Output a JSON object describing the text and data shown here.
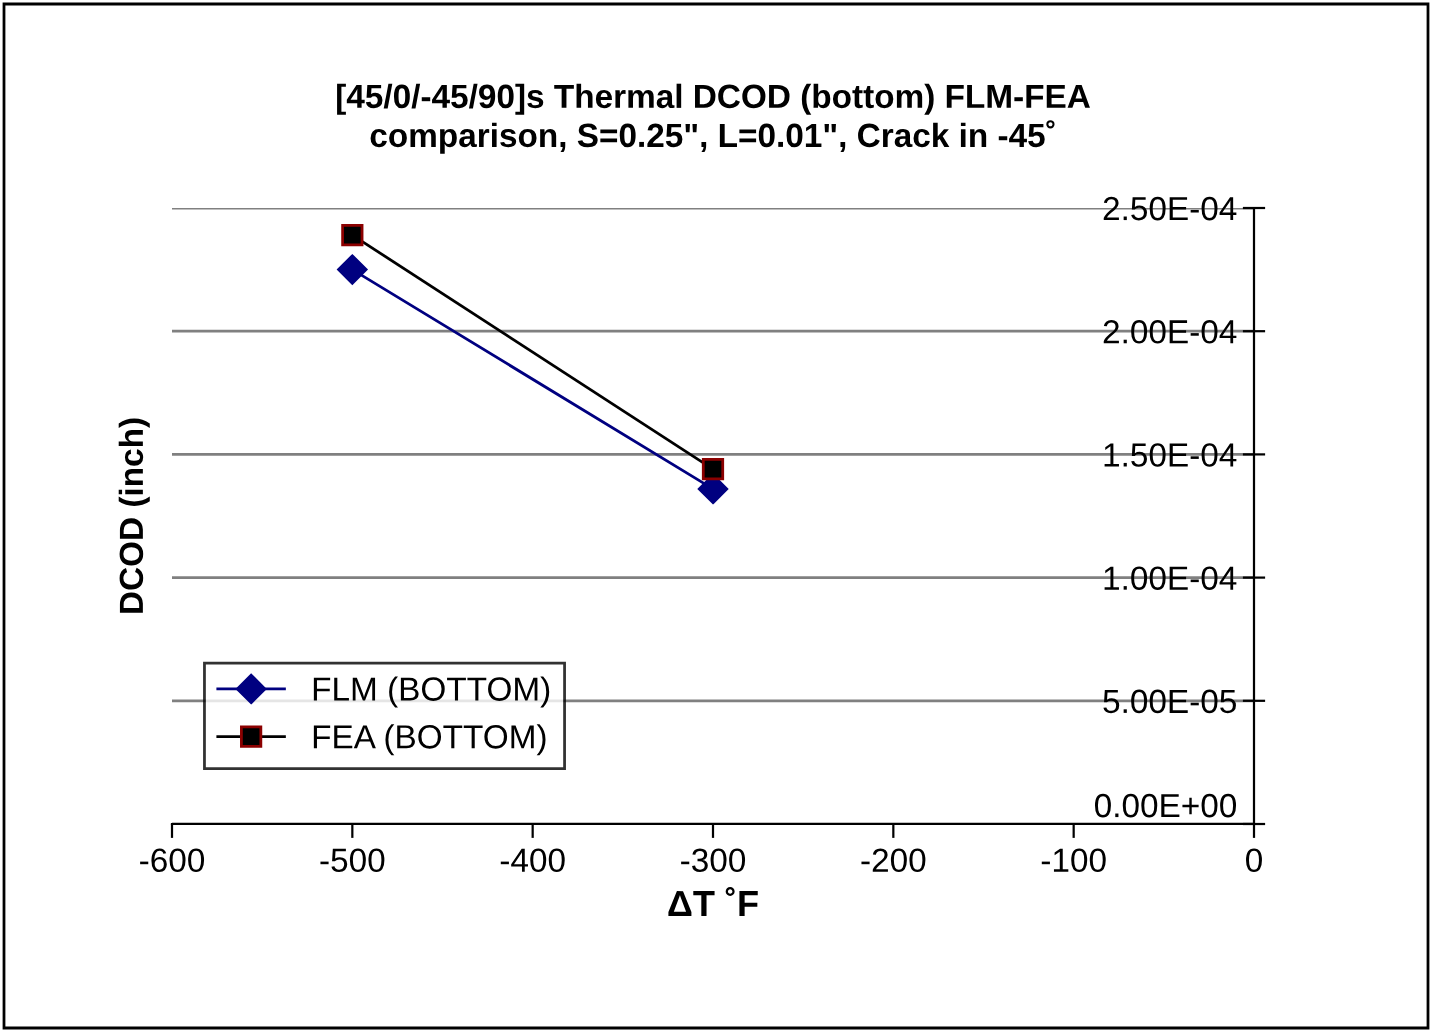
{
  "chart_data": {
    "type": "line",
    "title": "[45/0/-45/90]s Thermal DCOD (bottom) FLM-FEA\ncomparison, S=0.25\", L=0.01\", Crack in -45˚",
    "xlabel": "ΔT ˚F",
    "ylabel": "DCOD (inch)",
    "x": [
      -500,
      -300
    ],
    "series": [
      {
        "name": "FLM (BOTTOM)",
        "color": "#000080",
        "marker": "diamond",
        "values": [
          0.000225,
          0.000136
        ]
      },
      {
        "name": "FEA (BOTTOM)",
        "color": "#000000",
        "marker": "square",
        "values": [
          0.000239,
          0.000144
        ]
      }
    ],
    "xlim": [
      -600,
      0
    ],
    "xticks": [
      -600,
      -500,
      -400,
      -300,
      -200,
      -100,
      0
    ],
    "ylim": [
      0,
      0.00025
    ],
    "yticks": [
      {
        "value": 0,
        "label": "0.00E+00"
      },
      {
        "value": 5e-05,
        "label": "5.00E-05"
      },
      {
        "value": 0.0001,
        "label": "1.00E-04"
      },
      {
        "value": 0.00015,
        "label": "1.50E-04"
      },
      {
        "value": 0.0002,
        "label": "2.00E-04"
      },
      {
        "value": 0.00025,
        "label": "2.50E-04"
      }
    ],
    "grid": "y",
    "legend": "bottom left"
  }
}
